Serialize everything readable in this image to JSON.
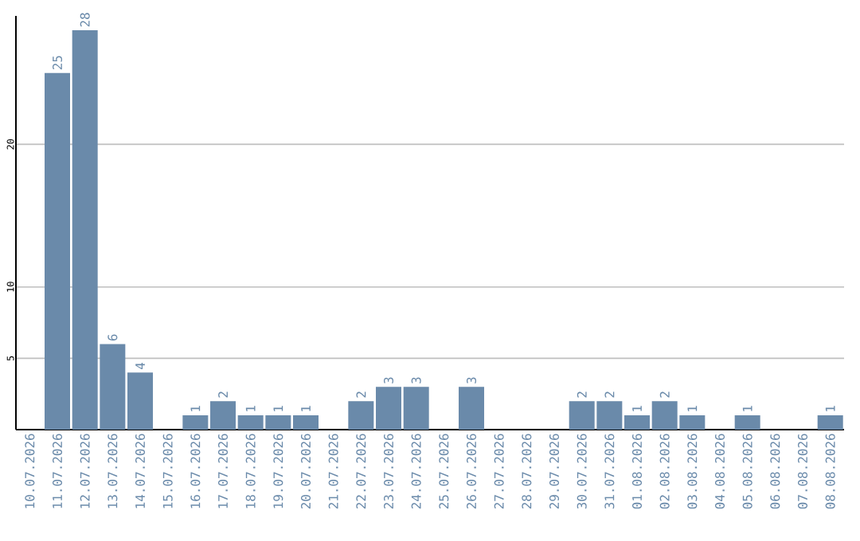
{
  "chart_data": {
    "type": "bar",
    "categories": [
      "10.07.2026",
      "11.07.2026",
      "12.07.2026",
      "13.07.2026",
      "14.07.2026",
      "15.07.2026",
      "16.07.2026",
      "17.07.2026",
      "18.07.2026",
      "19.07.2026",
      "20.07.2026",
      "21.07.2026",
      "22.07.2026",
      "23.07.2026",
      "24.07.2026",
      "25.07.2026",
      "26.07.2026",
      "27.07.2026",
      "28.07.2026",
      "29.07.2026",
      "30.07.2026",
      "31.07.2026",
      "01.08.2026",
      "02.08.2026",
      "03.08.2026",
      "04.08.2026",
      "05.08.2026",
      "06.08.2026",
      "07.08.2026",
      "08.08.2026"
    ],
    "values": [
      null,
      25,
      28,
      6,
      4,
      null,
      1,
      2,
      1,
      1,
      1,
      null,
      2,
      3,
      3,
      null,
      3,
      null,
      null,
      null,
      2,
      2,
      1,
      2,
      1,
      null,
      1,
      null,
      null,
      1
    ],
    "color": "#6a8aaa",
    "ylim": [
      0,
      29
    ],
    "yticks": [
      5,
      10,
      20
    ],
    "grid": "y",
    "data_labels": true
  }
}
